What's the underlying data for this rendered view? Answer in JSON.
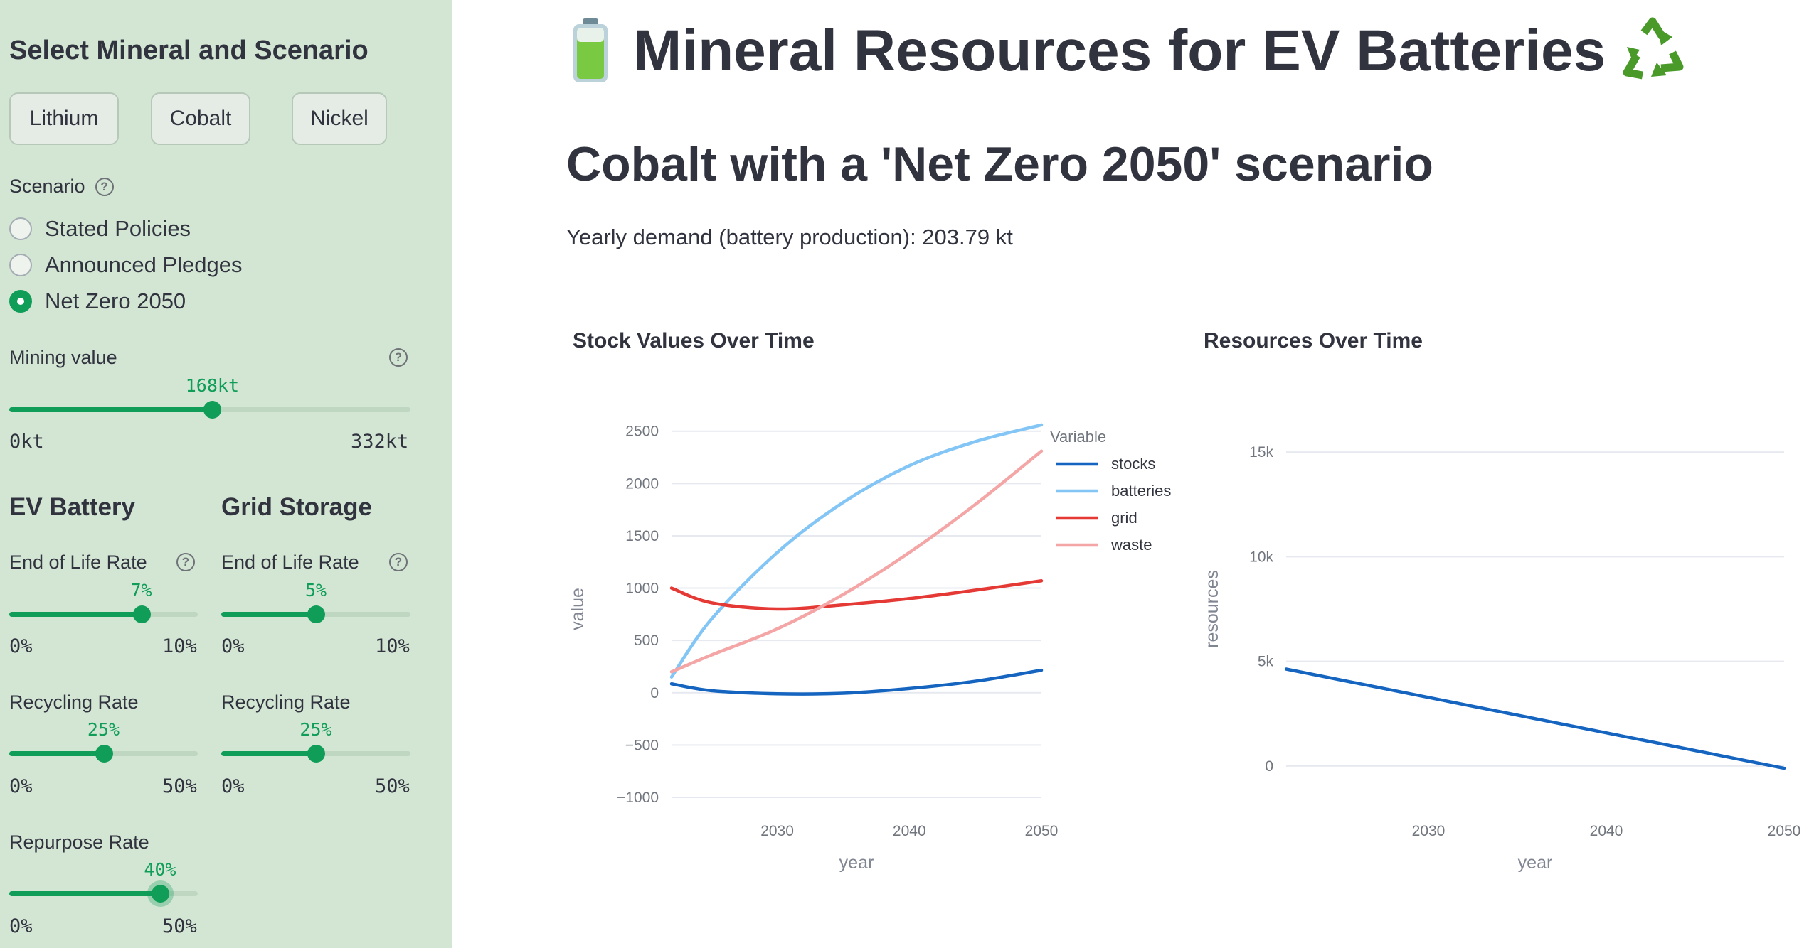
{
  "app": {
    "title": "Mineral Resources for EV Batteries",
    "title_icon_left": "battery-icon",
    "title_icon_right": "recycle-icon"
  },
  "sidebar": {
    "title": "Select Mineral and Scenario",
    "minerals": [
      "Lithium",
      "Cobalt",
      "Nickel"
    ],
    "scenario_label": "Scenario",
    "scenarios": [
      "Stated Policies",
      "Announced Pledges",
      "Net Zero 2050"
    ],
    "selected_scenario": "Net Zero 2050",
    "mining": {
      "label": "Mining value",
      "value_label": "168kt",
      "min_label": "0kt",
      "max_label": "332kt",
      "value": 168,
      "min": 0,
      "max": 332
    },
    "ev_battery": {
      "heading": "EV Battery",
      "end_of_life": {
        "label": "End of Life Rate",
        "value_label": "7%",
        "min_label": "0%",
        "max_label": "10%",
        "value": 7,
        "min": 0,
        "max": 10
      },
      "recycling": {
        "label": "Recycling Rate",
        "value_label": "25%",
        "min_label": "0%",
        "max_label": "50%",
        "value": 25,
        "min": 0,
        "max": 50
      },
      "repurpose": {
        "label": "Repurpose Rate",
        "value_label": "40%",
        "min_label": "0%",
        "max_label": "50%",
        "value": 40,
        "min": 0,
        "max": 50
      }
    },
    "grid_storage": {
      "heading": "Grid Storage",
      "end_of_life": {
        "label": "End of Life Rate",
        "value_label": "5%",
        "min_label": "0%",
        "max_label": "10%",
        "value": 5,
        "min": 0,
        "max": 10
      },
      "recycling": {
        "label": "Recycling Rate",
        "value_label": "25%",
        "min_label": "0%",
        "max_label": "50%",
        "value": 25,
        "min": 0,
        "max": 50
      }
    }
  },
  "main": {
    "subtitle": "Cobalt with a 'Net Zero 2050' scenario",
    "demand_text": "Yearly demand (battery production): 203.79 kt"
  },
  "colors": {
    "accent": "#0f9d58",
    "sidebar_bg": "#d3e6d4"
  },
  "chart_data": [
    {
      "type": "line",
      "title": "Stock Values Over Time",
      "xlabel": "year",
      "ylabel": "value",
      "xlim": [
        2022,
        2050
      ],
      "ylim": [
        -1000,
        2600
      ],
      "xticks": [
        2030,
        2040,
        2050
      ],
      "yticks": [
        -1000,
        -500,
        0,
        500,
        1000,
        1500,
        2000,
        2500
      ],
      "ytick_labels": [
        "−1000",
        "−500",
        "0",
        "500",
        "1000",
        "1500",
        "2000",
        "2500"
      ],
      "legend_title": "Variable",
      "legend_position": "top-right",
      "x": [
        2022,
        2025,
        2030,
        2035,
        2040,
        2045,
        2050
      ],
      "series": [
        {
          "name": "stocks",
          "color": "#1565c0",
          "values": [
            85,
            20,
            -10,
            -5,
            40,
            110,
            215
          ]
        },
        {
          "name": "batteries",
          "color": "#83c5f5",
          "values": [
            150,
            700,
            1340,
            1820,
            2170,
            2400,
            2560
          ]
        },
        {
          "name": "grid",
          "color": "#e53935",
          "values": [
            1000,
            860,
            800,
            840,
            900,
            980,
            1070
          ]
        },
        {
          "name": "waste",
          "color": "#f4a6a6",
          "values": [
            200,
            360,
            610,
            940,
            1340,
            1800,
            2310
          ]
        }
      ]
    },
    {
      "type": "line",
      "title": "Resources Over Time",
      "xlabel": "year",
      "ylabel": "resources",
      "xlim": [
        2022,
        2050
      ],
      "ylim": [
        -1500,
        16500
      ],
      "xticks": [
        2030,
        2040,
        2050
      ],
      "yticks": [
        0,
        5000,
        10000,
        15000
      ],
      "ytick_labels": [
        "0",
        "5k",
        "10k",
        "15k"
      ],
      "x": [
        2022,
        2050
      ],
      "series": [
        {
          "color": "#1565c0",
          "values": [
            4630,
            -110
          ]
        }
      ]
    }
  ]
}
